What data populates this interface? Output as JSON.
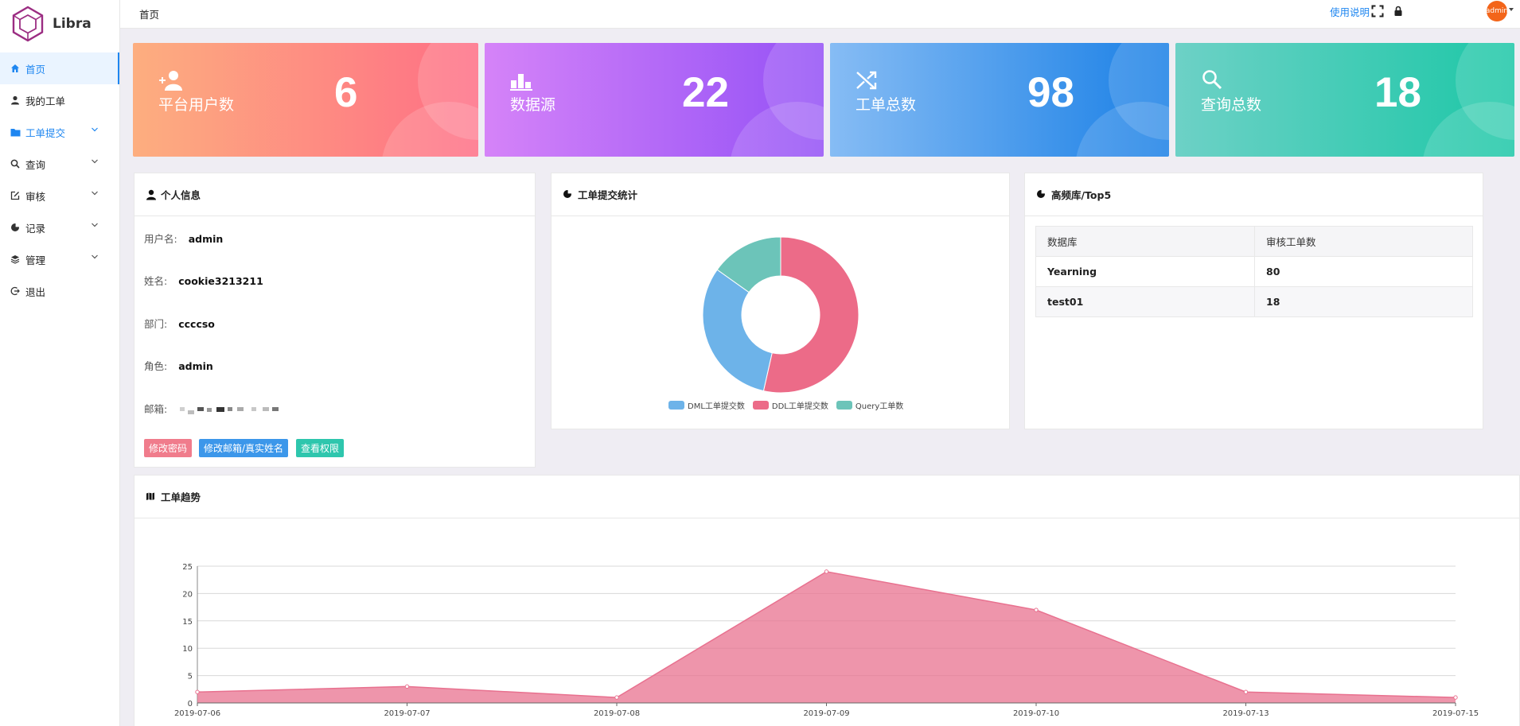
{
  "app": {
    "brand": "Libra"
  },
  "sidebar": {
    "items": [
      {
        "label": "首页",
        "icon": "home-icon",
        "state": "active"
      },
      {
        "label": "我的工单",
        "icon": "user-icon",
        "state": ""
      },
      {
        "label": "工单提交",
        "icon": "folder-icon",
        "state": "open"
      },
      {
        "label": "查询",
        "icon": "search-icon",
        "state": ""
      },
      {
        "label": "审核",
        "icon": "edit-icon",
        "state": ""
      },
      {
        "label": "记录",
        "icon": "pie-icon",
        "state": ""
      },
      {
        "label": "管理",
        "icon": "layers-icon",
        "state": ""
      },
      {
        "label": "退出",
        "icon": "logout-icon",
        "state": ""
      }
    ]
  },
  "header": {
    "breadcrumb": "首页",
    "help": "使用说明",
    "avatar_text": "admin"
  },
  "stats": [
    {
      "label": "平台用户数",
      "value": "6",
      "icon": "add-user-icon",
      "colors": [
        "#fdae7f",
        "#fe6e85"
      ]
    },
    {
      "label": "数据源",
      "value": "22",
      "icon": "bar-chart-icon",
      "colors": [
        "#d583f8",
        "#9451f6"
      ]
    },
    {
      "label": "工单总数",
      "value": "98",
      "icon": "shuffle-icon",
      "colors": [
        "#86bcf4",
        "#1a80e6"
      ]
    },
    {
      "label": "查询总数",
      "value": "18",
      "icon": "search-icon",
      "colors": [
        "#6dd1c6",
        "#1dc7a7"
      ]
    }
  ],
  "profile": {
    "title": "个人信息",
    "rows": [
      {
        "label": "用户名:",
        "value": "admin"
      },
      {
        "label": "姓名:",
        "value": "cookie3213211"
      },
      {
        "label": "部门:",
        "value": "ccccso"
      },
      {
        "label": "角色:",
        "value": "admin"
      },
      {
        "label": "邮箱:",
        "value": ""
      }
    ],
    "buttons": [
      {
        "label": "修改密码",
        "color": "#f07c8c"
      },
      {
        "label": "修改邮箱/真实姓名",
        "color": "#3c97ea"
      },
      {
        "label": "查看权限",
        "color": "#2ec6ad"
      }
    ]
  },
  "submit_stats": {
    "title": "工单提交统计"
  },
  "top5": {
    "title": "高频库/Top5",
    "headers": [
      "数据库",
      "审核工单数"
    ],
    "rows": [
      [
        "Yearning",
        "80"
      ],
      [
        "test01",
        "18"
      ]
    ]
  },
  "trend": {
    "title": "工单趋势"
  },
  "chart_data": [
    {
      "type": "pie",
      "labels": [
        "DML工单提交数",
        "DDL工单提交数",
        "Query工单数"
      ],
      "values": [
        31,
        53,
        15
      ],
      "colors": [
        "#6db3e9",
        "#ec6b88",
        "#6cc4b9"
      ],
      "donut": true
    },
    {
      "type": "area",
      "x": [
        "2019-07-06",
        "2019-07-07",
        "2019-07-08",
        "2019-07-09",
        "2019-07-10",
        "2019-07-13",
        "2019-07-15"
      ],
      "values": [
        2,
        3,
        1,
        24,
        17,
        2,
        1
      ],
      "ylim": [
        0,
        25
      ],
      "yticks": [
        0,
        5,
        10,
        15,
        20,
        25
      ],
      "color": "#e8718f",
      "grid": true
    }
  ]
}
